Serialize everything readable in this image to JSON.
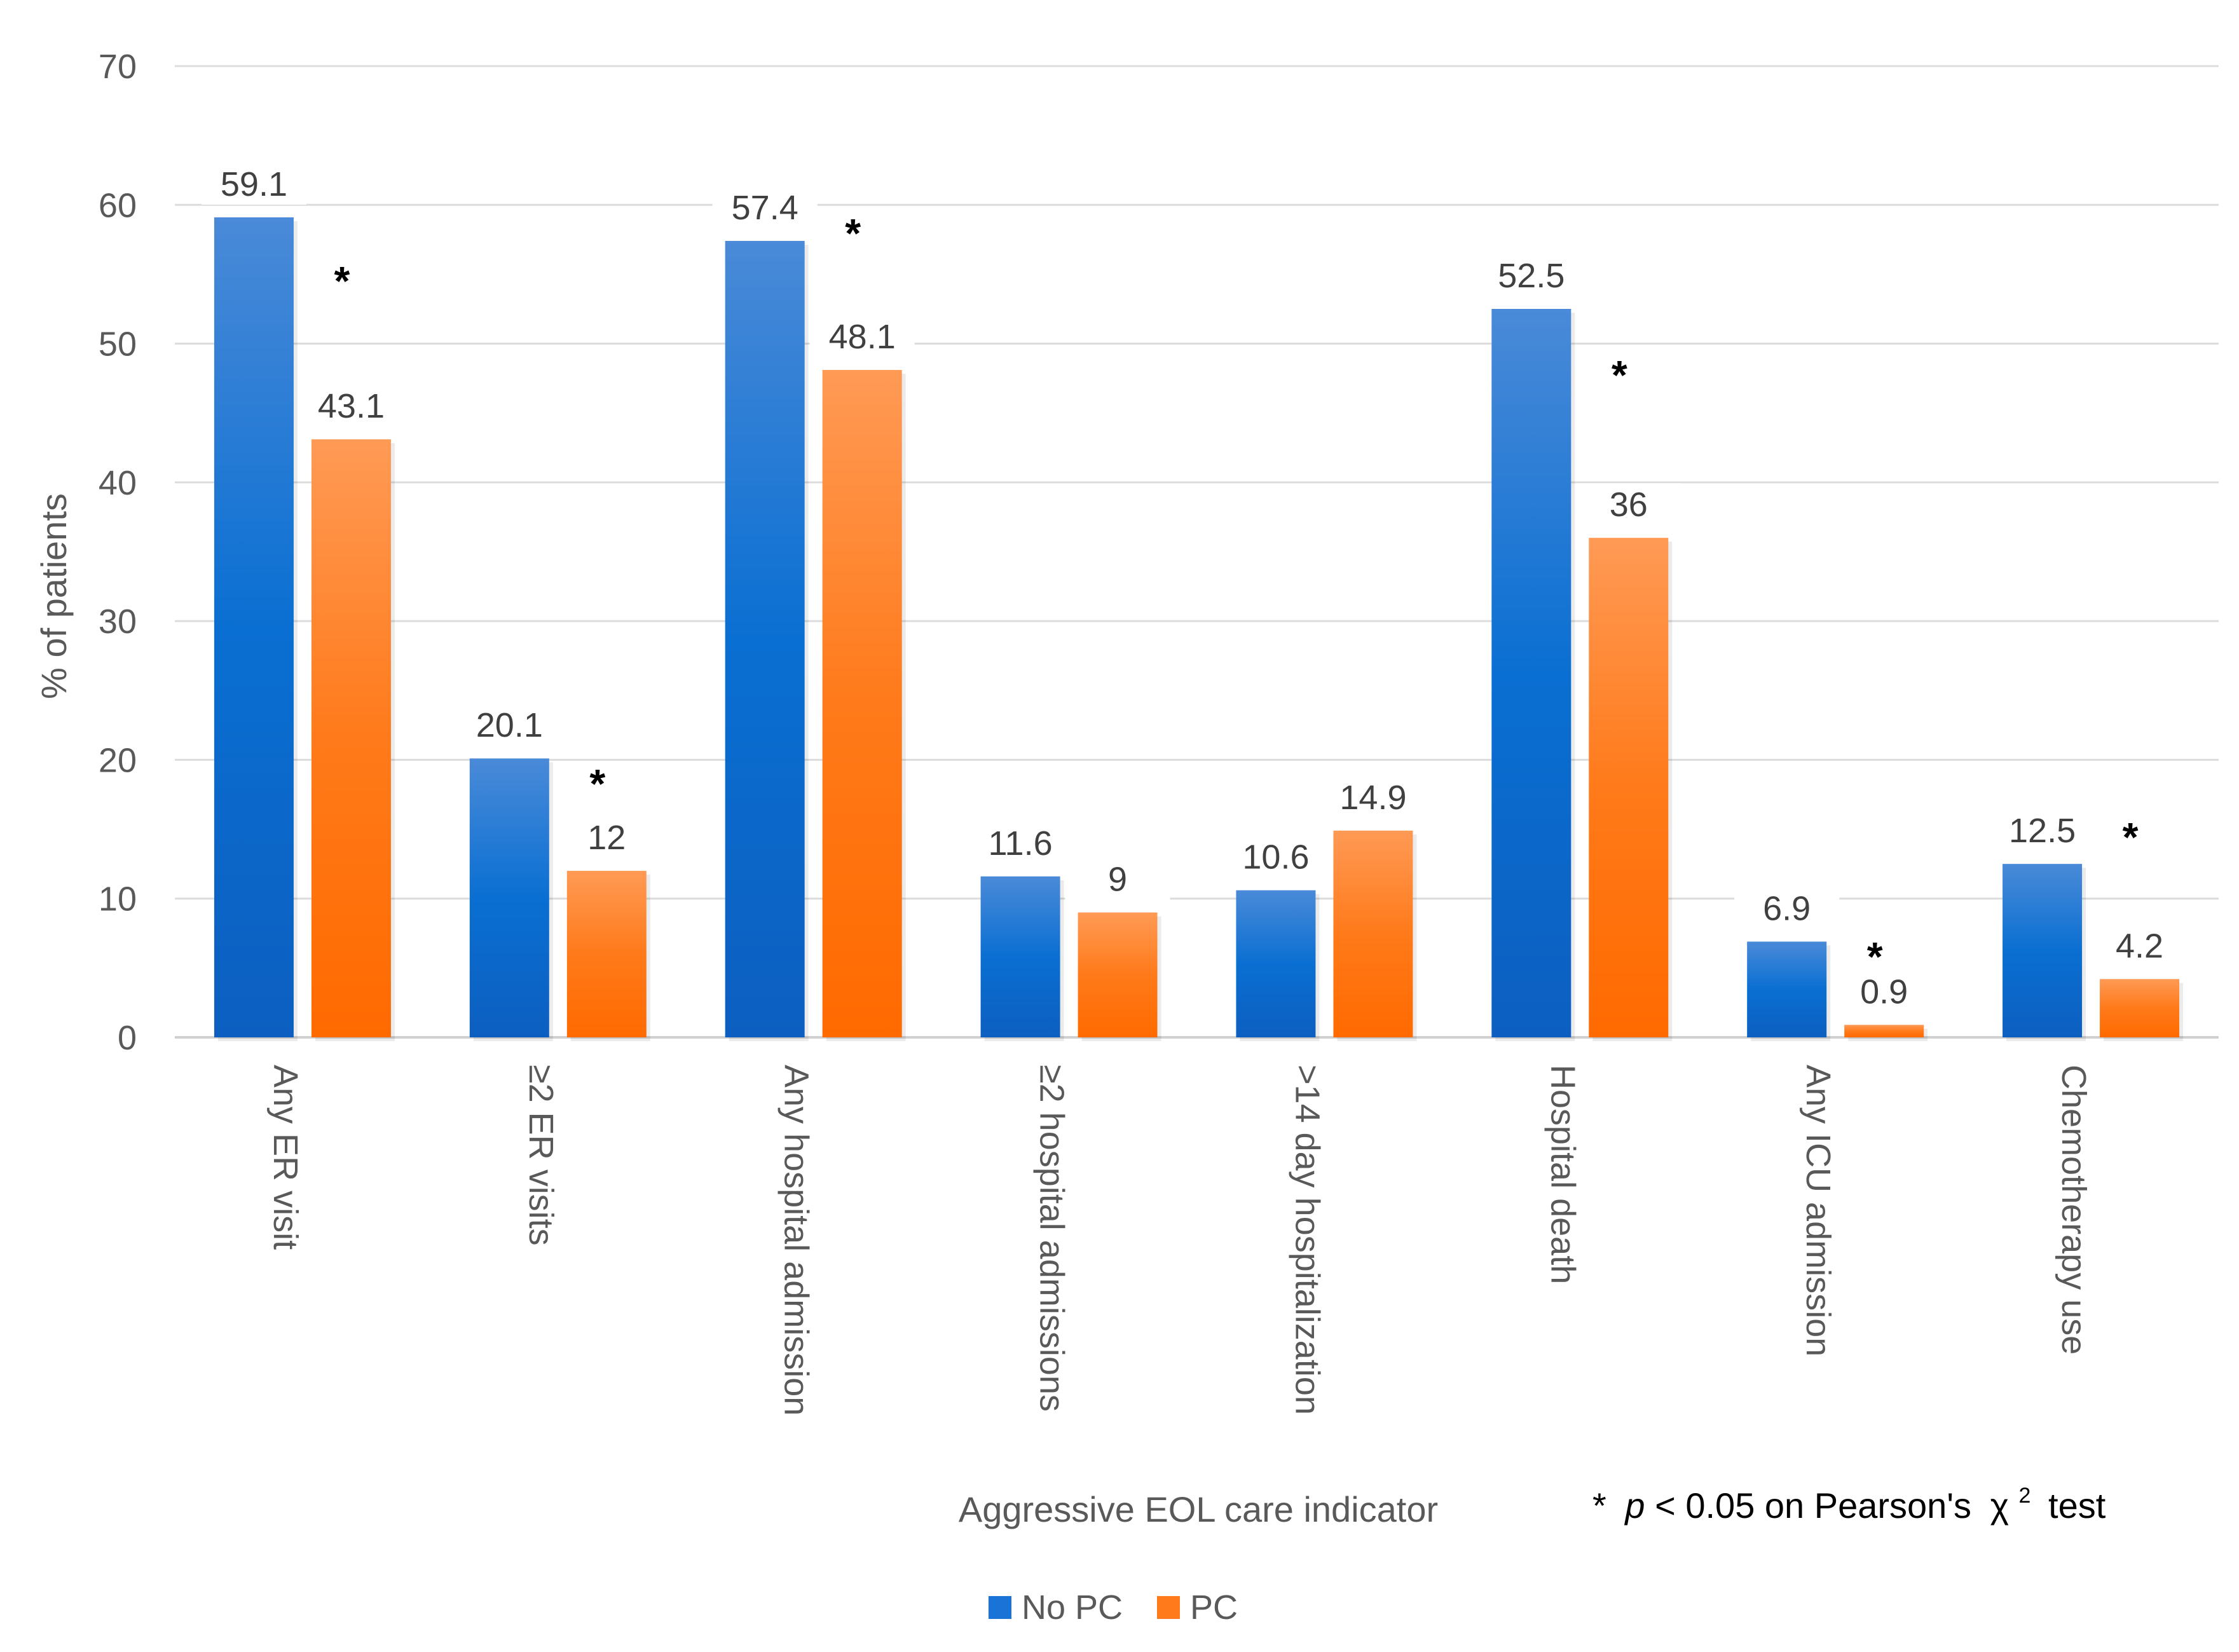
{
  "chart_data": {
    "type": "bar",
    "title": "",
    "xlabel": "Aggressive EOL care indicator",
    "ylabel": "% of patients",
    "ylim": [
      0,
      70
    ],
    "yticks": [
      0,
      10,
      20,
      30,
      40,
      50,
      60,
      70
    ],
    "grid": true,
    "legend_position": "bottom-center",
    "categories": [
      "Any ER visit",
      "≥2 ER visits",
      "Any hospital admission",
      "≥2 hospital admissions",
      ">14 day hospitalization",
      "Hospital death",
      "Any ICU admission",
      "Chemotherapy use"
    ],
    "series": [
      {
        "name": "No PC",
        "color": "#1a73d6",
        "values": [
          59.1,
          20.1,
          57.4,
          11.6,
          10.6,
          52.5,
          6.9,
          12.5
        ]
      },
      {
        "name": "PC",
        "color": "#ff7a1a",
        "values": [
          43.1,
          12,
          48.1,
          9,
          14.9,
          36,
          0.9,
          4.2
        ]
      }
    ],
    "significant": [
      true,
      true,
      true,
      false,
      false,
      true,
      true,
      true
    ],
    "significance_marker": "*",
    "footnote": {
      "star": "*",
      "p": "p",
      "rest": "< 0.05 on Pearson's",
      "chi": "χ",
      "sup": "2",
      "test": "test"
    }
  }
}
